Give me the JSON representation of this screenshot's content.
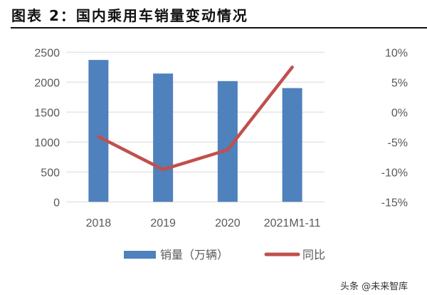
{
  "title": "图表 2：国内乘用车销量变动情况",
  "watermark": "头条 @未来智库",
  "chart_data": {
    "type": "bar+line",
    "title": "图表 2：国内乘用车销量变动情况",
    "categories": [
      "2018",
      "2019",
      "2020",
      "2021M1-11"
    ],
    "series": [
      {
        "name": "销量（万辆）",
        "type": "bar",
        "axis": "left",
        "color": "#4f81bd",
        "values": [
          2371,
          2144,
          2018,
          1901
        ]
      },
      {
        "name": "同比",
        "type": "line",
        "axis": "right",
        "color": "#c0504d",
        "values": [
          -4.1,
          -9.6,
          -6.3,
          7.5
        ]
      }
    ],
    "y_left": {
      "lim": [
        0,
        2500
      ],
      "ticks": [
        "0",
        "500",
        "1000",
        "1500",
        "2000",
        "2500"
      ]
    },
    "y_right": {
      "lim": [
        -15,
        10
      ],
      "unit": "%",
      "ticks": [
        "-15%",
        "-10%",
        "-5%",
        "0%",
        "5%",
        "10%"
      ]
    },
    "grid": true,
    "legend": "bottom"
  }
}
